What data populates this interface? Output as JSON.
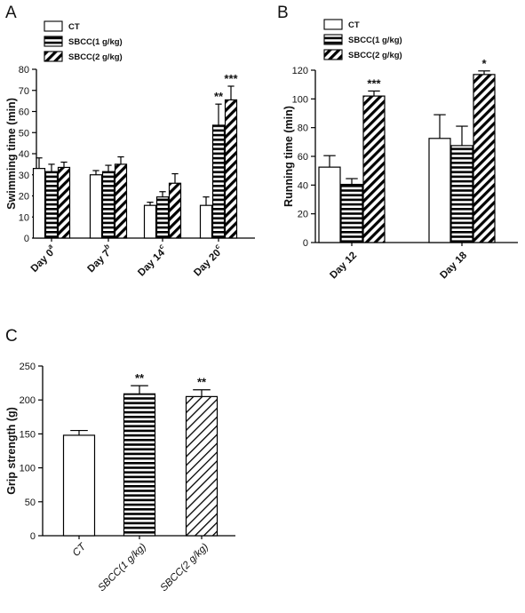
{
  "chart_data": [
    {
      "panel": "A",
      "type": "bar",
      "ylabel": "Swimming time (min)",
      "ylim": [
        0,
        80
      ],
      "yticks": [
        0,
        10,
        20,
        30,
        40,
        50,
        60,
        70,
        80
      ],
      "categories": [
        {
          "main": "Day 0",
          "sup": "a"
        },
        {
          "main": "Day 7",
          "sup": "b"
        },
        {
          "main": "Day 14",
          "sup": "c"
        },
        {
          "main": "Day 20",
          "sup": "c"
        }
      ],
      "series": [
        {
          "name": "CT",
          "pattern": "plain",
          "values": [
            33,
            30,
            15.5,
            15.5
          ],
          "errors": [
            5,
            2,
            1.5,
            4
          ],
          "stars": [
            "",
            "",
            "",
            ""
          ]
        },
        {
          "name": "SBCC(1 g/kg)",
          "pattern": "hlines",
          "values": [
            31.5,
            31.5,
            19.5,
            53.5
          ],
          "errors": [
            3.5,
            3,
            2.5,
            10
          ],
          "stars": [
            "",
            "",
            "",
            "**"
          ]
        },
        {
          "name": "SBCC(2 g/kg)",
          "pattern": "diag",
          "values": [
            33.5,
            35,
            26,
            65.5
          ],
          "errors": [
            2.5,
            3.5,
            4.5,
            6.5
          ],
          "stars": [
            "",
            "",
            "",
            "***"
          ]
        }
      ],
      "legend_position": "top-left",
      "grid": false
    },
    {
      "panel": "B",
      "type": "bar",
      "ylabel": "Running time (min)",
      "ylim": [
        0,
        120
      ],
      "yticks": [
        0,
        20,
        40,
        60,
        80,
        100,
        120
      ],
      "categories": [
        {
          "main": "Day 12",
          "sup": ""
        },
        {
          "main": "Day 18",
          "sup": ""
        }
      ],
      "series": [
        {
          "name": "CT",
          "pattern": "plain",
          "values": [
            52.5,
            72.5
          ],
          "errors": [
            8,
            16.5
          ],
          "stars": [
            "",
            ""
          ]
        },
        {
          "name": "SBCC(1 g/kg)",
          "pattern": "hlines",
          "values": [
            40.5,
            67.5
          ],
          "errors": [
            4,
            13.5
          ],
          "stars": [
            "",
            ""
          ]
        },
        {
          "name": "SBCC(2 g/kg)",
          "pattern": "diag",
          "values": [
            102,
            117
          ],
          "errors": [
            3.5,
            2.5
          ],
          "stars": [
            "***",
            "*"
          ]
        }
      ],
      "legend_position": "top-left",
      "grid": false
    },
    {
      "panel": "C",
      "type": "bar",
      "ylabel": "Grip strength (g)",
      "ylim": [
        0,
        250
      ],
      "yticks": [
        0,
        50,
        100,
        150,
        200,
        250
      ],
      "categories": [
        "CT",
        "SBCC(1 g/kg)",
        "SBCC(2 g/kg)"
      ],
      "series": [
        {
          "name": "",
          "values": [
            148,
            209,
            205
          ],
          "errors": [
            7,
            12,
            10
          ],
          "stars": [
            "",
            "**",
            "**"
          ],
          "patterns": [
            "plain",
            "hlines",
            "diag-thin"
          ]
        }
      ],
      "grid": false
    }
  ]
}
